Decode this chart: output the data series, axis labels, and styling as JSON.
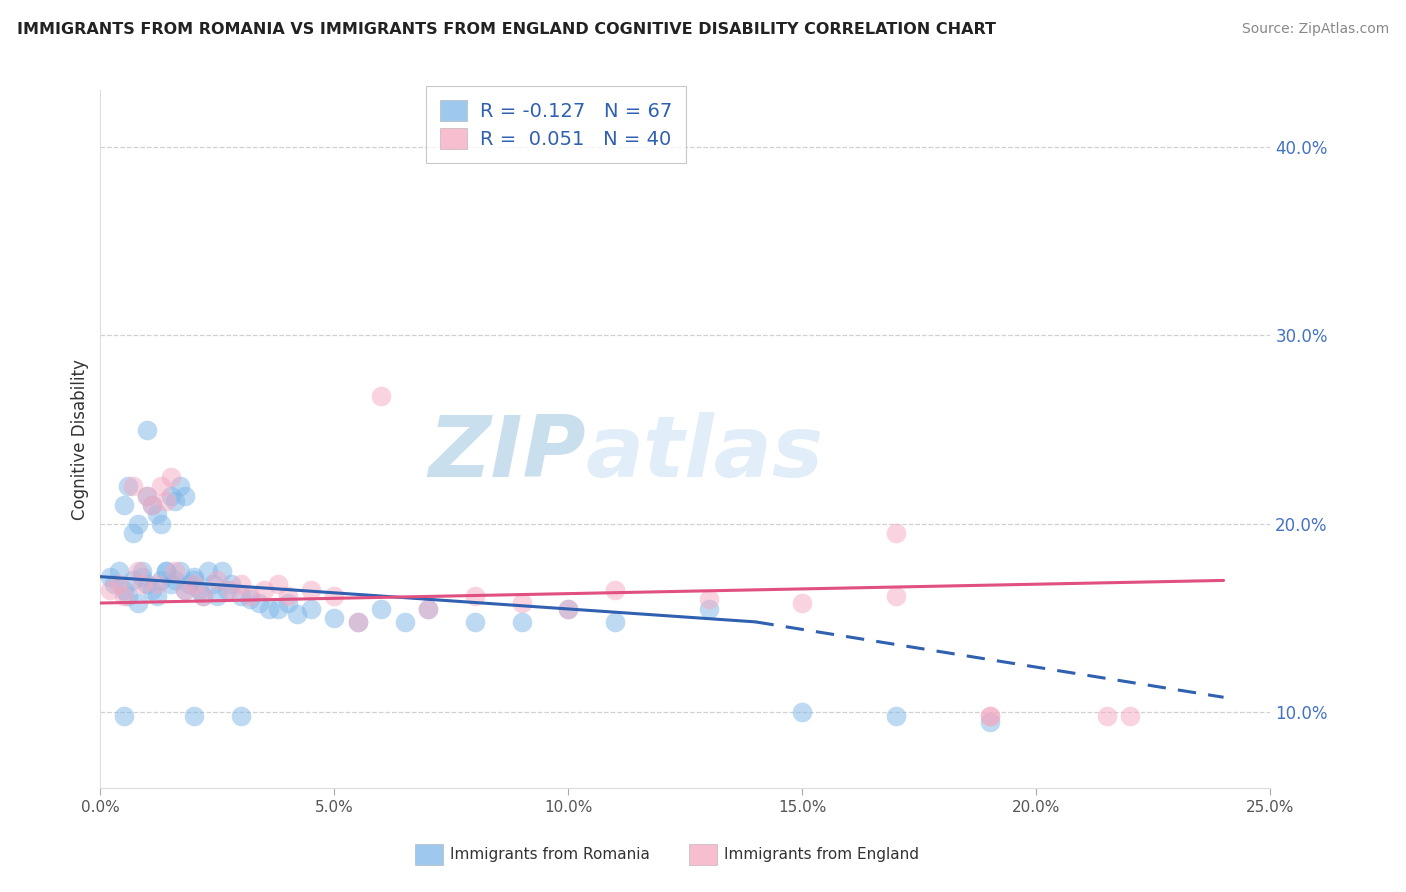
{
  "title": "IMMIGRANTS FROM ROMANIA VS IMMIGRANTS FROM ENGLAND COGNITIVE DISABILITY CORRELATION CHART",
  "source": "Source: ZipAtlas.com",
  "ylabel": "Cognitive Disability",
  "legend_label1": "Immigrants from Romania",
  "legend_label2": "Immigrants from England",
  "R1": -0.127,
  "N1": 67,
  "R2": 0.051,
  "N2": 40,
  "color_romania": "#7EB6E8",
  "color_england": "#F4A8C0",
  "xlim": [
    0.0,
    0.25
  ],
  "ylim": [
    0.06,
    0.43
  ],
  "yticks": [
    0.1,
    0.2,
    0.3,
    0.4
  ],
  "xticks": [
    0.0,
    0.05,
    0.1,
    0.15,
    0.2,
    0.25
  ],
  "xtick_labels": [
    "0.0%",
    "5.0%",
    "10.0%",
    "15.0%",
    "20.0%",
    "25.0%"
  ],
  "ytick_labels": [
    "10.0%",
    "20.0%",
    "30.0%",
    "40.0%"
  ],
  "romania_x": [
    0.002,
    0.003,
    0.004,
    0.005,
    0.005,
    0.006,
    0.006,
    0.007,
    0.007,
    0.008,
    0.008,
    0.009,
    0.009,
    0.01,
    0.01,
    0.011,
    0.011,
    0.012,
    0.012,
    0.013,
    0.013,
    0.014,
    0.014,
    0.015,
    0.015,
    0.016,
    0.016,
    0.017,
    0.017,
    0.018,
    0.018,
    0.019,
    0.02,
    0.02,
    0.021,
    0.022,
    0.023,
    0.024,
    0.025,
    0.026,
    0.027,
    0.028,
    0.03,
    0.032,
    0.034,
    0.036,
    0.038,
    0.04,
    0.042,
    0.045,
    0.05,
    0.055,
    0.06,
    0.065,
    0.07,
    0.08,
    0.09,
    0.1,
    0.11,
    0.13,
    0.15,
    0.17,
    0.19,
    0.005,
    0.01,
    0.02,
    0.03
  ],
  "romania_y": [
    0.172,
    0.168,
    0.175,
    0.165,
    0.21,
    0.162,
    0.22,
    0.17,
    0.195,
    0.158,
    0.2,
    0.172,
    0.175,
    0.168,
    0.215,
    0.165,
    0.21,
    0.162,
    0.205,
    0.17,
    0.2,
    0.175,
    0.175,
    0.215,
    0.168,
    0.212,
    0.17,
    0.175,
    0.22,
    0.165,
    0.215,
    0.168,
    0.17,
    0.172,
    0.165,
    0.162,
    0.175,
    0.168,
    0.162,
    0.175,
    0.165,
    0.168,
    0.162,
    0.16,
    0.158,
    0.155,
    0.155,
    0.158,
    0.152,
    0.155,
    0.15,
    0.148,
    0.155,
    0.148,
    0.155,
    0.148,
    0.148,
    0.155,
    0.148,
    0.155,
    0.1,
    0.098,
    0.095,
    0.098,
    0.25,
    0.098,
    0.098
  ],
  "england_x": [
    0.002,
    0.004,
    0.005,
    0.007,
    0.008,
    0.009,
    0.01,
    0.011,
    0.012,
    0.013,
    0.014,
    0.015,
    0.016,
    0.018,
    0.02,
    0.022,
    0.025,
    0.028,
    0.03,
    0.032,
    0.035,
    0.038,
    0.04,
    0.045,
    0.05,
    0.055,
    0.06,
    0.07,
    0.08,
    0.09,
    0.1,
    0.11,
    0.13,
    0.15,
    0.17,
    0.19,
    0.215,
    0.22,
    0.17,
    0.19
  ],
  "england_y": [
    0.165,
    0.168,
    0.162,
    0.22,
    0.175,
    0.168,
    0.215,
    0.21,
    0.168,
    0.22,
    0.212,
    0.225,
    0.175,
    0.165,
    0.168,
    0.162,
    0.17,
    0.165,
    0.168,
    0.162,
    0.165,
    0.168,
    0.162,
    0.165,
    0.162,
    0.148,
    0.268,
    0.155,
    0.162,
    0.158,
    0.155,
    0.165,
    0.16,
    0.158,
    0.162,
    0.098,
    0.098,
    0.098,
    0.195,
    0.098
  ],
  "trend_romania_start_x": 0.0,
  "trend_romania_start_y": 0.172,
  "trend_romania_solid_end_x": 0.14,
  "trend_romania_solid_end_y": 0.148,
  "trend_romania_end_x": 0.24,
  "trend_romania_end_y": 0.108,
  "trend_england_start_x": 0.0,
  "trend_england_start_y": 0.158,
  "trend_england_end_x": 0.24,
  "trend_england_end_y": 0.17,
  "watermark_zip": "ZIP",
  "watermark_atlas": "atlas",
  "background_color": "#FFFFFF",
  "grid_color": "#CCCCCC",
  "trend_blue": "#3060B0",
  "trend_pink": "#E05080"
}
